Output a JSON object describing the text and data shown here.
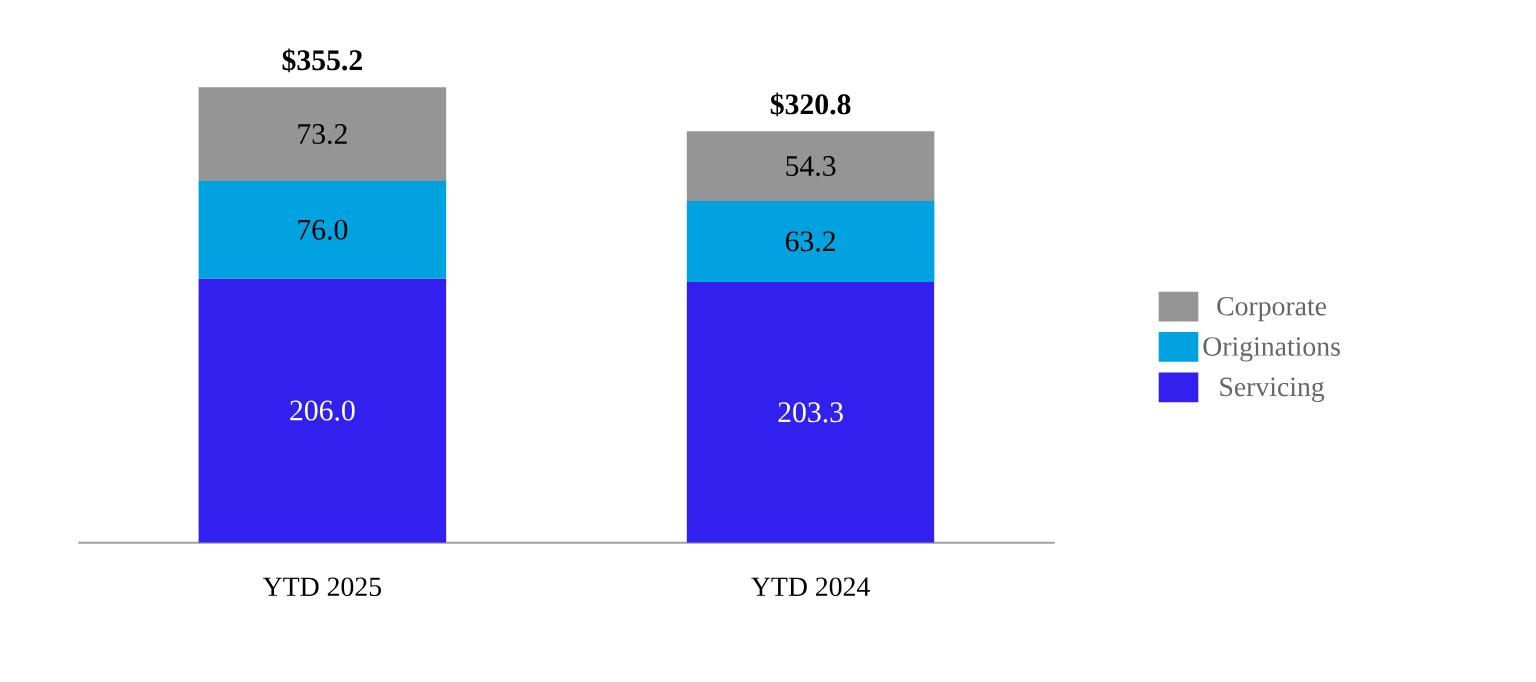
{
  "chart_data": {
    "type": "bar",
    "stacked": true,
    "categories": [
      "YTD 2025",
      "YTD 2024"
    ],
    "series": [
      {
        "name": "Servicing",
        "color": "#3120ee",
        "values": [
          206.0,
          203.3
        ],
        "value_labels": [
          "206.0",
          "203.3"
        ]
      },
      {
        "name": "Originations",
        "color": "#00a3e0",
        "values": [
          76.0,
          63.2
        ],
        "value_labels": [
          "76.0",
          "63.2"
        ]
      },
      {
        "name": "Corporate",
        "color": "#959595",
        "values": [
          73.2,
          54.3
        ],
        "value_labels": [
          "73.2",
          "54.3"
        ]
      }
    ],
    "totals": [
      "$355.2",
      "$320.8"
    ],
    "legend": "right",
    "tick_labels": "x"
  }
}
